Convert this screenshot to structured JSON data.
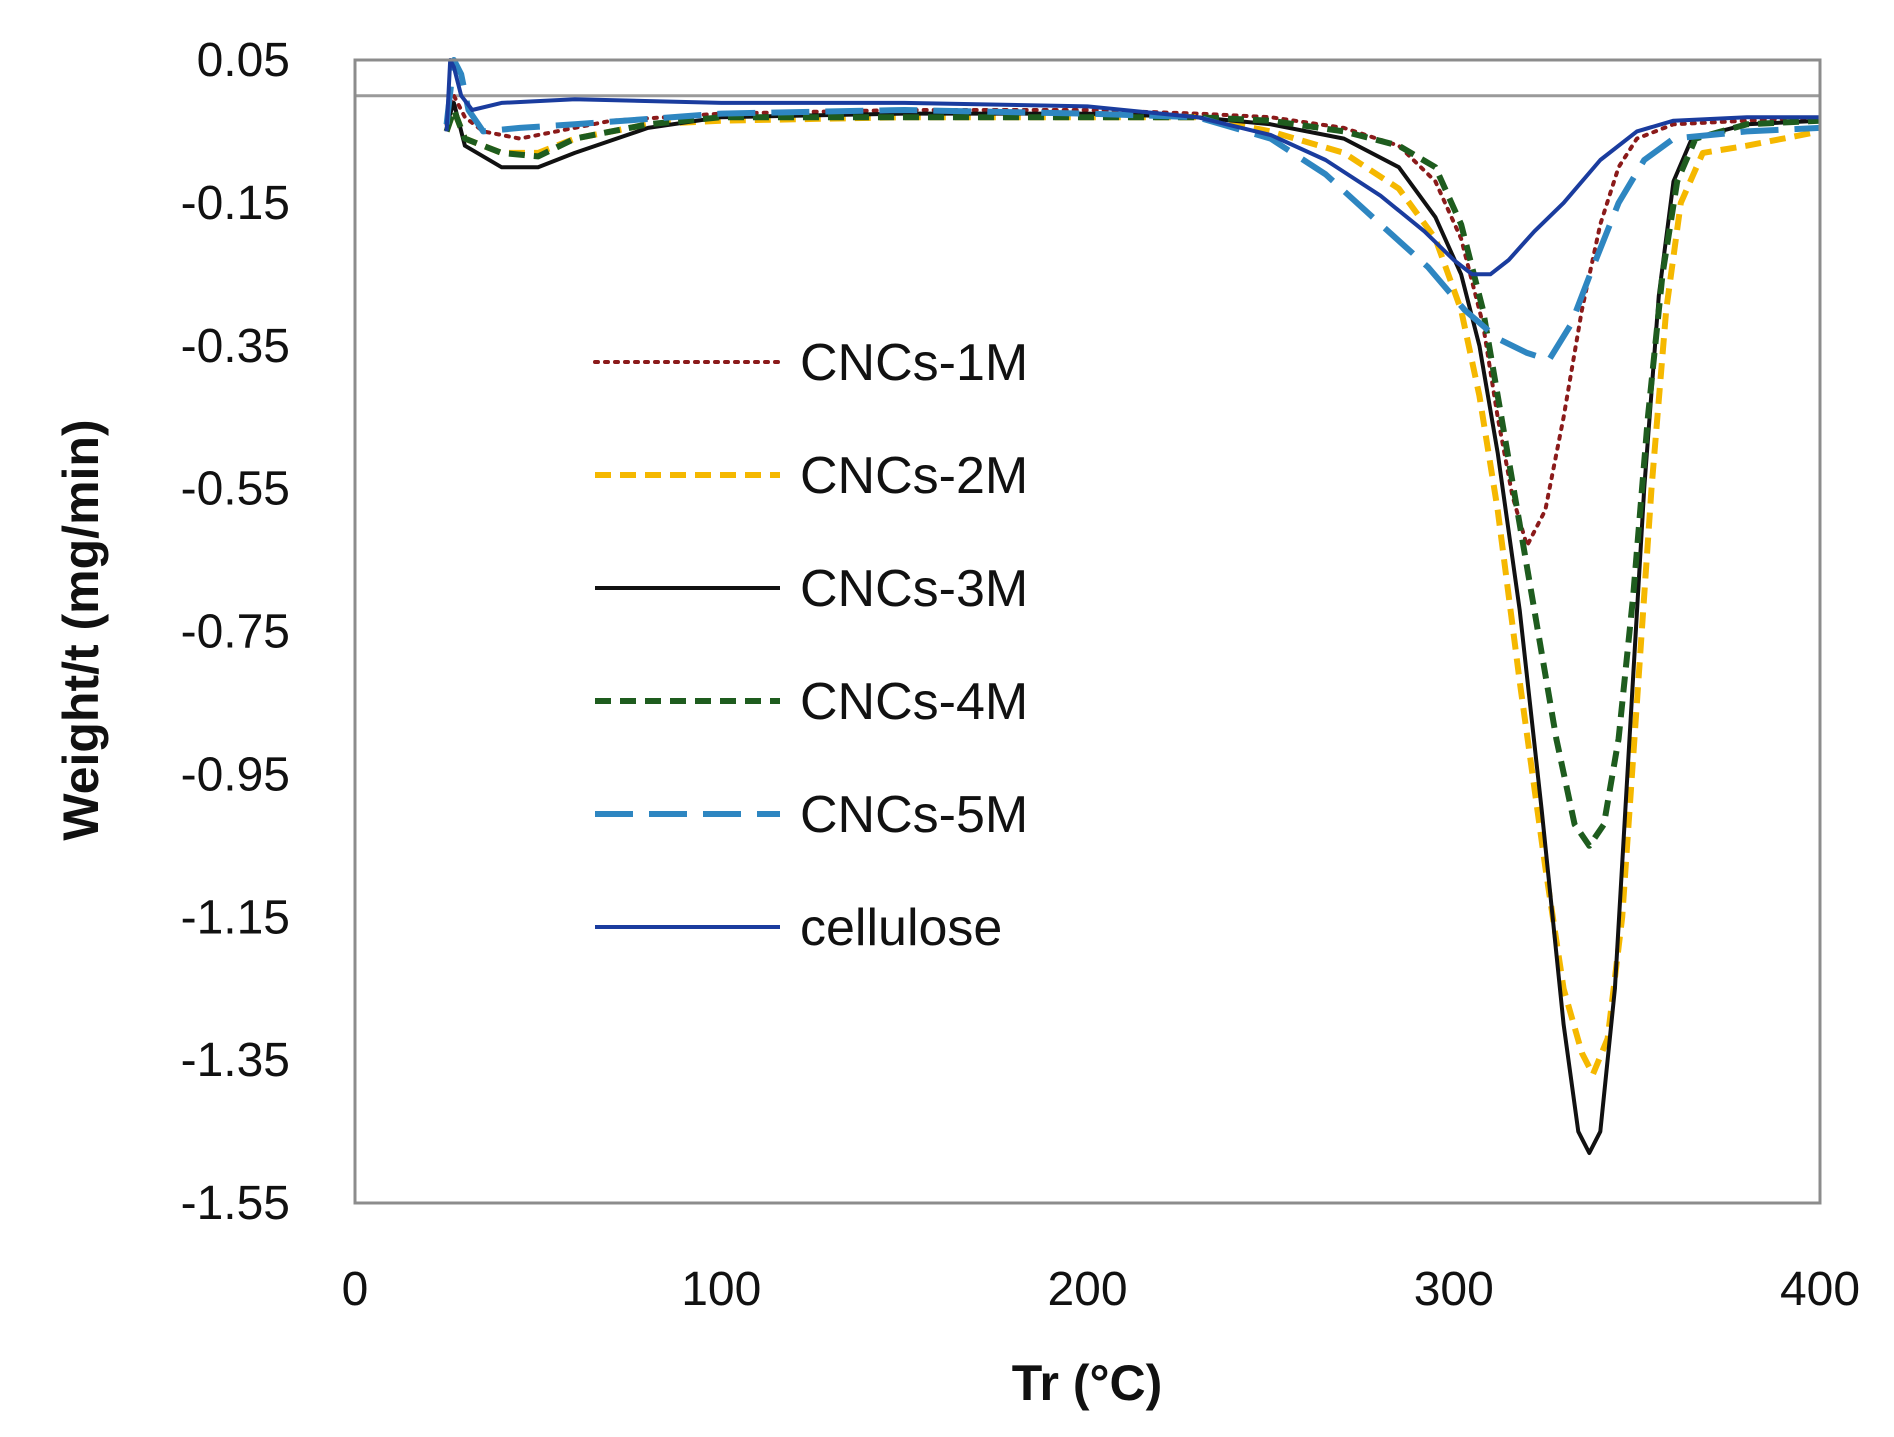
{
  "chart_data": {
    "type": "line",
    "title": "",
    "xlabel": "Tr (°C)",
    "ylabel": "Weight/t (mg/min)",
    "xlim": [
      0,
      400
    ],
    "ylim": [
      -1.55,
      0.05
    ],
    "x_ticks": [
      0,
      100,
      200,
      300,
      400
    ],
    "x_tick_labels": [
      "0",
      "100",
      "200",
      "300",
      "400"
    ],
    "y_ticks": [
      0.05,
      -0.15,
      -0.35,
      -0.55,
      -0.75,
      -0.95,
      -1.15,
      -1.35,
      -1.55
    ],
    "y_tick_labels": [
      "0.05",
      "-0.15",
      "-0.35",
      "-0.55",
      "-0.75",
      "-0.95",
      "-1.15",
      "-1.35",
      "-1.55"
    ],
    "reference_line_y": 0,
    "grid": false,
    "legend": "center-left",
    "series": [
      {
        "name": "CNCs-1M",
        "color": "#8B1A1A",
        "style": "dotted",
        "points": [
          [
            25,
            -0.04
          ],
          [
            27,
            0.0
          ],
          [
            30,
            -0.03
          ],
          [
            35,
            -0.05
          ],
          [
            45,
            -0.06
          ],
          [
            55,
            -0.05
          ],
          [
            70,
            -0.035
          ],
          [
            100,
            -0.025
          ],
          [
            150,
            -0.02
          ],
          [
            200,
            -0.02
          ],
          [
            230,
            -0.025
          ],
          [
            250,
            -0.03
          ],
          [
            270,
            -0.045
          ],
          [
            285,
            -0.07
          ],
          [
            295,
            -0.12
          ],
          [
            302,
            -0.2
          ],
          [
            308,
            -0.32
          ],
          [
            312,
            -0.45
          ],
          [
            316,
            -0.56
          ],
          [
            320,
            -0.63
          ],
          [
            325,
            -0.58
          ],
          [
            330,
            -0.45
          ],
          [
            335,
            -0.3
          ],
          [
            340,
            -0.18
          ],
          [
            345,
            -0.1
          ],
          [
            350,
            -0.06
          ],
          [
            360,
            -0.04
          ],
          [
            380,
            -0.035
          ],
          [
            400,
            -0.03
          ]
        ]
      },
      {
        "name": "CNCs-2M",
        "color": "#F5B800",
        "style": "dashed",
        "points": [
          [
            25,
            -0.05
          ],
          [
            27,
            -0.02
          ],
          [
            30,
            -0.06
          ],
          [
            40,
            -0.08
          ],
          [
            50,
            -0.08
          ],
          [
            60,
            -0.06
          ],
          [
            80,
            -0.04
          ],
          [
            100,
            -0.035
          ],
          [
            150,
            -0.03
          ],
          [
            200,
            -0.03
          ],
          [
            230,
            -0.03
          ],
          [
            250,
            -0.05
          ],
          [
            270,
            -0.08
          ],
          [
            285,
            -0.13
          ],
          [
            295,
            -0.2
          ],
          [
            302,
            -0.3
          ],
          [
            307,
            -0.42
          ],
          [
            312,
            -0.58
          ],
          [
            318,
            -0.82
          ],
          [
            325,
            -1.08
          ],
          [
            330,
            -1.25
          ],
          [
            335,
            -1.34
          ],
          [
            338,
            -1.37
          ],
          [
            342,
            -1.32
          ],
          [
            346,
            -1.15
          ],
          [
            350,
            -0.85
          ],
          [
            354,
            -0.55
          ],
          [
            358,
            -0.3
          ],
          [
            362,
            -0.15
          ],
          [
            368,
            -0.08
          ],
          [
            380,
            -0.07
          ],
          [
            400,
            -0.05
          ]
        ]
      },
      {
        "name": "CNCs-3M",
        "color": "#111111",
        "style": "solid",
        "points": [
          [
            25,
            -0.04
          ],
          [
            27,
            -0.01
          ],
          [
            30,
            -0.07
          ],
          [
            40,
            -0.1
          ],
          [
            50,
            -0.1
          ],
          [
            60,
            -0.08
          ],
          [
            80,
            -0.045
          ],
          [
            100,
            -0.03
          ],
          [
            150,
            -0.025
          ],
          [
            200,
            -0.025
          ],
          [
            230,
            -0.03
          ],
          [
            250,
            -0.04
          ],
          [
            270,
            -0.06
          ],
          [
            285,
            -0.1
          ],
          [
            295,
            -0.17
          ],
          [
            302,
            -0.25
          ],
          [
            307,
            -0.35
          ],
          [
            312,
            -0.5
          ],
          [
            318,
            -0.72
          ],
          [
            324,
            -1.0
          ],
          [
            330,
            -1.3
          ],
          [
            334,
            -1.45
          ],
          [
            337,
            -1.48
          ],
          [
            340,
            -1.45
          ],
          [
            344,
            -1.25
          ],
          [
            348,
            -0.9
          ],
          [
            352,
            -0.55
          ],
          [
            356,
            -0.28
          ],
          [
            360,
            -0.12
          ],
          [
            365,
            -0.06
          ],
          [
            380,
            -0.04
          ],
          [
            400,
            -0.035
          ]
        ]
      },
      {
        "name": "CNCs-4M",
        "color": "#1E5C1E",
        "style": "dashed",
        "points": [
          [
            25,
            -0.05
          ],
          [
            27,
            -0.02
          ],
          [
            30,
            -0.06
          ],
          [
            40,
            -0.08
          ],
          [
            50,
            -0.085
          ],
          [
            60,
            -0.06
          ],
          [
            80,
            -0.04
          ],
          [
            100,
            -0.03
          ],
          [
            150,
            -0.03
          ],
          [
            200,
            -0.03
          ],
          [
            230,
            -0.03
          ],
          [
            250,
            -0.035
          ],
          [
            270,
            -0.05
          ],
          [
            285,
            -0.07
          ],
          [
            295,
            -0.1
          ],
          [
            302,
            -0.18
          ],
          [
            308,
            -0.3
          ],
          [
            313,
            -0.45
          ],
          [
            318,
            -0.6
          ],
          [
            323,
            -0.75
          ],
          [
            328,
            -0.9
          ],
          [
            333,
            -1.02
          ],
          [
            337,
            -1.05
          ],
          [
            341,
            -1.02
          ],
          [
            345,
            -0.9
          ],
          [
            349,
            -0.7
          ],
          [
            353,
            -0.45
          ],
          [
            357,
            -0.25
          ],
          [
            361,
            -0.12
          ],
          [
            366,
            -0.06
          ],
          [
            380,
            -0.04
          ],
          [
            400,
            -0.035
          ]
        ]
      },
      {
        "name": "CNCs-5M",
        "color": "#2E86C1",
        "style": "longdash",
        "points": [
          [
            25,
            -0.04
          ],
          [
            27,
            0.05
          ],
          [
            29,
            0.03
          ],
          [
            31,
            -0.02
          ],
          [
            35,
            -0.05
          ],
          [
            45,
            -0.045
          ],
          [
            60,
            -0.04
          ],
          [
            100,
            -0.025
          ],
          [
            150,
            -0.02
          ],
          [
            200,
            -0.025
          ],
          [
            230,
            -0.03
          ],
          [
            250,
            -0.06
          ],
          [
            265,
            -0.11
          ],
          [
            280,
            -0.18
          ],
          [
            293,
            -0.24
          ],
          [
            303,
            -0.3
          ],
          [
            312,
            -0.34
          ],
          [
            320,
            -0.36
          ],
          [
            326,
            -0.37
          ],
          [
            332,
            -0.32
          ],
          [
            338,
            -0.24
          ],
          [
            345,
            -0.15
          ],
          [
            352,
            -0.09
          ],
          [
            360,
            -0.06
          ],
          [
            380,
            -0.05
          ],
          [
            400,
            -0.045
          ]
        ]
      },
      {
        "name": "cellulose",
        "color": "#1A3C9E",
        "style": "solid",
        "points": [
          [
            25,
            -0.05
          ],
          [
            26,
            0.05
          ],
          [
            27,
            0.04
          ],
          [
            29,
            0.0
          ],
          [
            32,
            -0.02
          ],
          [
            40,
            -0.01
          ],
          [
            60,
            -0.005
          ],
          [
            100,
            -0.01
          ],
          [
            150,
            -0.01
          ],
          [
            200,
            -0.015
          ],
          [
            230,
            -0.03
          ],
          [
            250,
            -0.055
          ],
          [
            265,
            -0.09
          ],
          [
            280,
            -0.14
          ],
          [
            292,
            -0.19
          ],
          [
            300,
            -0.23
          ],
          [
            305,
            -0.25
          ],
          [
            310,
            -0.25
          ],
          [
            315,
            -0.23
          ],
          [
            322,
            -0.19
          ],
          [
            330,
            -0.15
          ],
          [
            340,
            -0.09
          ],
          [
            350,
            -0.05
          ],
          [
            360,
            -0.035
          ],
          [
            380,
            -0.03
          ],
          [
            400,
            -0.03
          ]
        ]
      }
    ]
  }
}
